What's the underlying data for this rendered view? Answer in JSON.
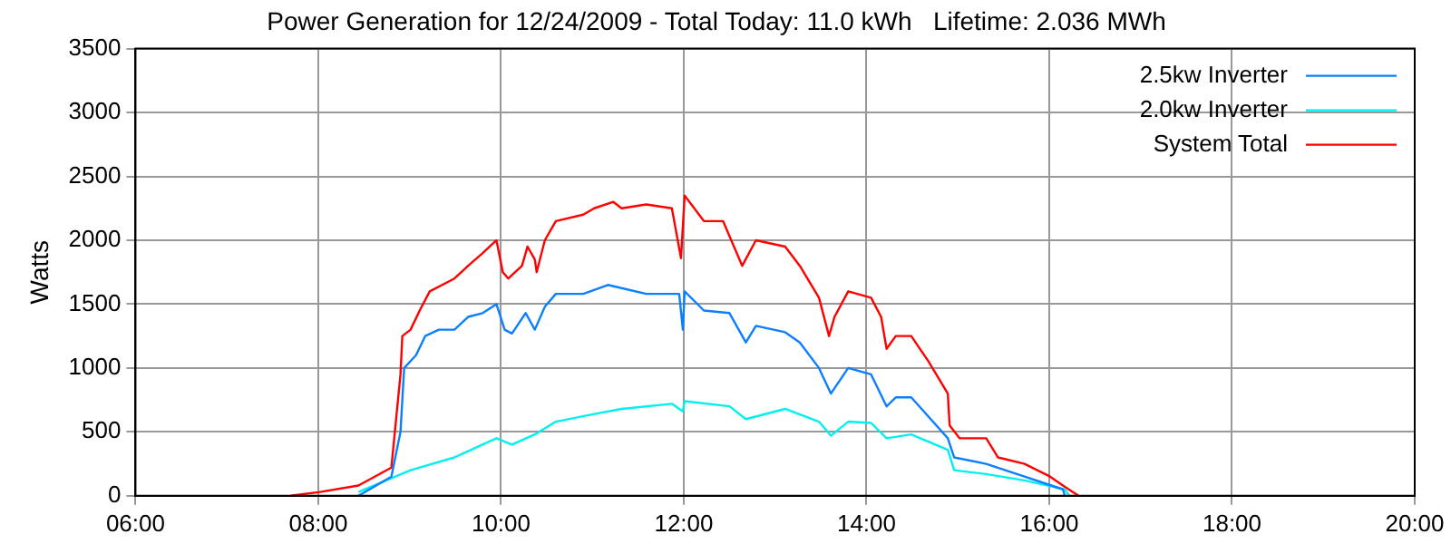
{
  "chart_data": {
    "type": "line",
    "title": "Power Generation for 12/24/2009 - Total Today: 11.0 kWh   Lifetime: 2.036 MWh",
    "ylabel": "Watts",
    "xlim": [
      6,
      20
    ],
    "xticks": [
      {
        "value": 6,
        "label": "06:00"
      },
      {
        "value": 8,
        "label": "08:00"
      },
      {
        "value": 10,
        "label": "10:00"
      },
      {
        "value": 12,
        "label": "12:00"
      },
      {
        "value": 14,
        "label": "14:00"
      },
      {
        "value": 16,
        "label": "16:00"
      },
      {
        "value": 18,
        "label": "18:00"
      },
      {
        "value": 20,
        "label": "20:00"
      }
    ],
    "ylim": [
      0,
      3500
    ],
    "yticks": [
      0,
      500,
      1000,
      1500,
      2000,
      2500,
      3000,
      3500
    ],
    "grid": true,
    "legend": "top right",
    "marker": "none",
    "line_style": "solid",
    "series": [
      {
        "name": "2.5kw Inverter",
        "color": "#0a7fff",
        "x": [
          8.44,
          8.8,
          8.9,
          8.94,
          9.07,
          9.17,
          9.32,
          9.49,
          9.64,
          9.8,
          9.95,
          10.04,
          10.12,
          10.27,
          10.37,
          10.48,
          10.6,
          10.9,
          11.17,
          11.59,
          11.95,
          11.99,
          12.01,
          12.22,
          12.5,
          12.68,
          12.79,
          13.11,
          13.27,
          13.48,
          13.61,
          13.8,
          14.05,
          14.22,
          14.32,
          14.49,
          14.89,
          14.96,
          15.31,
          15.73,
          16.15,
          16.17
        ],
        "values": [
          0,
          150,
          500,
          1000,
          1100,
          1250,
          1300,
          1300,
          1400,
          1430,
          1500,
          1300,
          1270,
          1430,
          1300,
          1480,
          1580,
          1580,
          1650,
          1580,
          1580,
          1300,
          1600,
          1450,
          1430,
          1200,
          1330,
          1280,
          1200,
          1000,
          800,
          1000,
          950,
          700,
          770,
          770,
          450,
          300,
          250,
          150,
          50,
          0
        ]
      },
      {
        "name": "2.0kw Inverter",
        "color": "#00f0f0",
        "x": [
          8.44,
          9.01,
          9.49,
          9.95,
          10.12,
          10.37,
          10.6,
          11.02,
          11.32,
          11.87,
          11.99,
          12.01,
          12.5,
          12.68,
          13.11,
          13.48,
          13.61,
          13.8,
          14.05,
          14.22,
          14.49,
          14.89,
          14.96,
          15.31,
          15.73,
          16.17,
          16.22
        ],
        "values": [
          30,
          200,
          300,
          450,
          400,
          480,
          580,
          640,
          680,
          720,
          660,
          740,
          700,
          600,
          680,
          580,
          470,
          580,
          570,
          450,
          480,
          360,
          200,
          170,
          120,
          50,
          0
        ]
      },
      {
        "name": "System Total",
        "color": "#ff0000",
        "x": [
          7.7,
          8.02,
          8.44,
          8.8,
          8.9,
          8.92,
          9.01,
          9.11,
          9.22,
          9.49,
          9.64,
          9.8,
          9.95,
          10.02,
          10.08,
          10.23,
          10.29,
          10.37,
          10.39,
          10.48,
          10.6,
          10.9,
          11.02,
          11.23,
          11.32,
          11.59,
          11.87,
          11.97,
          12.01,
          12.22,
          12.43,
          12.64,
          12.79,
          13.11,
          13.27,
          13.48,
          13.59,
          13.65,
          13.8,
          14.05,
          14.16,
          14.22,
          14.32,
          14.49,
          14.68,
          14.89,
          14.91,
          15.02,
          15.31,
          15.44,
          15.73,
          16.01,
          16.15,
          16.32
        ],
        "values": [
          0,
          30,
          80,
          220,
          950,
          1250,
          1300,
          1450,
          1600,
          1700,
          1800,
          1900,
          2000,
          1750,
          1700,
          1800,
          1950,
          1850,
          1750,
          2000,
          2150,
          2200,
          2250,
          2300,
          2250,
          2280,
          2250,
          1860,
          2350,
          2150,
          2150,
          1800,
          2000,
          1950,
          1800,
          1550,
          1250,
          1400,
          1600,
          1550,
          1400,
          1150,
          1250,
          1250,
          1050,
          800,
          550,
          450,
          450,
          300,
          250,
          150,
          80,
          0
        ]
      }
    ]
  }
}
